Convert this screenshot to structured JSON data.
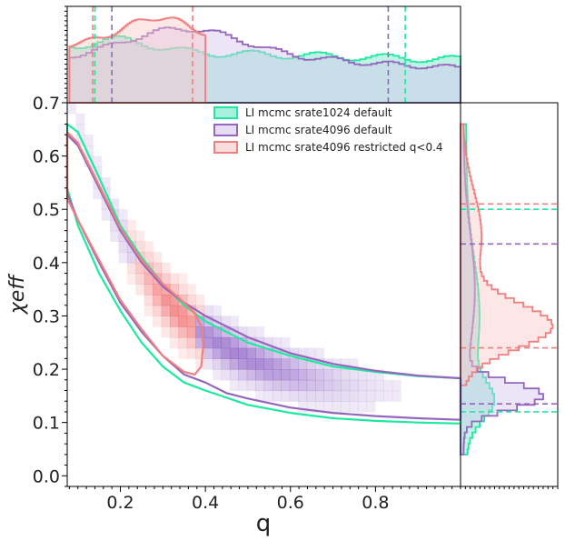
{
  "chart_data": {
    "type": "scatter",
    "subtype": "corner-plot: 2D credible contours with marginal histograms",
    "xlabel": "q",
    "ylabel": "χeff",
    "xlim": [
      0.075,
      1.0
    ],
    "ylim": [
      -0.02,
      0.7
    ],
    "x_ticks": [
      "0.2",
      "0.4",
      "0.6",
      "0.8"
    ],
    "x_tick_values": [
      0.2,
      0.4,
      0.6,
      0.8
    ],
    "y_ticks": [
      "0.0",
      "0.1",
      "0.2",
      "0.3",
      "0.4",
      "0.5",
      "0.6",
      "0.7"
    ],
    "y_tick_values": [
      0.0,
      0.1,
      0.2,
      0.3,
      0.4,
      0.5,
      0.6,
      0.7
    ],
    "legend_position": "top-center",
    "grid": false,
    "series": [
      {
        "name": "LI mcmc srate1024 default",
        "color": "#1de9a0",
        "fill": "#6fe5c6",
        "contour": [
          [
            0.075,
            0.66
          ],
          [
            0.1,
            0.645
          ],
          [
            0.15,
            0.56
          ],
          [
            0.2,
            0.47
          ],
          [
            0.25,
            0.41
          ],
          [
            0.3,
            0.36
          ],
          [
            0.35,
            0.32
          ],
          [
            0.4,
            0.29
          ],
          [
            0.5,
            0.25
          ],
          [
            0.6,
            0.225
          ],
          [
            0.7,
            0.205
          ],
          [
            0.8,
            0.195
          ],
          [
            0.9,
            0.187
          ],
          [
            1.0,
            0.183
          ],
          [
            1.0,
            0.098
          ],
          [
            0.9,
            0.1
          ],
          [
            0.8,
            0.103
          ],
          [
            0.7,
            0.108
          ],
          [
            0.6,
            0.118
          ],
          [
            0.5,
            0.133
          ],
          [
            0.4,
            0.16
          ],
          [
            0.35,
            0.175
          ],
          [
            0.3,
            0.205
          ],
          [
            0.25,
            0.25
          ],
          [
            0.2,
            0.31
          ],
          [
            0.15,
            0.38
          ],
          [
            0.1,
            0.47
          ],
          [
            0.075,
            0.54
          ]
        ],
        "q_marginal_interval": [
          0.14,
          0.87
        ],
        "chi_eff_marginal_interval": [
          0.12,
          0.5
        ]
      },
      {
        "name": "LI mcmc srate4096 default",
        "color": "#9467bd",
        "fill": "#d5c5ee",
        "contour": [
          [
            0.075,
            0.64
          ],
          [
            0.1,
            0.62
          ],
          [
            0.15,
            0.54
          ],
          [
            0.2,
            0.46
          ],
          [
            0.25,
            0.4
          ],
          [
            0.3,
            0.355
          ],
          [
            0.35,
            0.325
          ],
          [
            0.4,
            0.3
          ],
          [
            0.5,
            0.26
          ],
          [
            0.6,
            0.23
          ],
          [
            0.7,
            0.21
          ],
          [
            0.8,
            0.197
          ],
          [
            0.9,
            0.188
          ],
          [
            1.0,
            0.183
          ],
          [
            1.0,
            0.105
          ],
          [
            0.9,
            0.108
          ],
          [
            0.8,
            0.112
          ],
          [
            0.7,
            0.118
          ],
          [
            0.6,
            0.128
          ],
          [
            0.5,
            0.145
          ],
          [
            0.45,
            0.155
          ],
          [
            0.4,
            0.175
          ],
          [
            0.35,
            0.19
          ],
          [
            0.3,
            0.225
          ],
          [
            0.25,
            0.27
          ],
          [
            0.2,
            0.325
          ],
          [
            0.15,
            0.4
          ],
          [
            0.1,
            0.48
          ],
          [
            0.075,
            0.53
          ]
        ],
        "q_marginal_interval": [
          0.18,
          0.83
        ],
        "chi_eff_marginal_interval": [
          0.135,
          0.435
        ]
      },
      {
        "name": "LI mcmc srate4096 restricted q<0.4",
        "color": "#f08080",
        "fill": "#f9c7c7",
        "contour": [
          [
            0.075,
            0.645
          ],
          [
            0.1,
            0.625
          ],
          [
            0.15,
            0.545
          ],
          [
            0.2,
            0.465
          ],
          [
            0.25,
            0.405
          ],
          [
            0.3,
            0.36
          ],
          [
            0.35,
            0.325
          ],
          [
            0.375,
            0.305
          ],
          [
            0.39,
            0.28
          ],
          [
            0.395,
            0.245
          ],
          [
            0.39,
            0.205
          ],
          [
            0.375,
            0.19
          ],
          [
            0.35,
            0.195
          ],
          [
            0.3,
            0.225
          ],
          [
            0.25,
            0.275
          ],
          [
            0.2,
            0.33
          ],
          [
            0.15,
            0.405
          ],
          [
            0.1,
            0.48
          ],
          [
            0.075,
            0.52
          ]
        ],
        "q_marginal_interval": [
          0.135,
          0.37
        ],
        "chi_eff_marginal_interval": [
          0.24,
          0.51
        ]
      }
    ]
  }
}
